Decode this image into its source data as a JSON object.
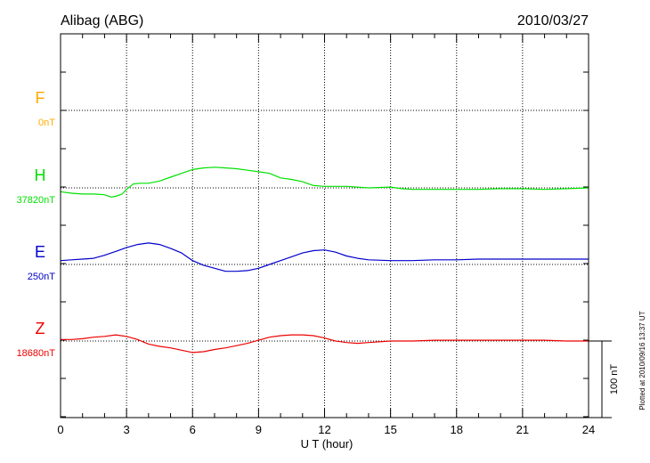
{
  "chart_data": {
    "type": "line",
    "title": "Alibag (ABG)",
    "date": "2010/03/27",
    "xlabel": "U T (hour)",
    "xlim": [
      0,
      24
    ],
    "xticks": [
      "0",
      "3",
      "6",
      "9",
      "12",
      "15",
      "18",
      "21",
      "24"
    ],
    "scale_label": "100 nT",
    "scale_nT": 100,
    "footer": "Plotted at 2010/09/16 13:37 UT",
    "series": [
      {
        "name": "F",
        "baseline": "0nT",
        "color": "#ffaa00",
        "x": [],
        "y": []
      },
      {
        "name": "H",
        "baseline": "37820nT",
        "color": "#00e000",
        "x": [
          0,
          0.5,
          1,
          1.5,
          2,
          2.3,
          2.5,
          2.8,
          3,
          3.3,
          3.6,
          4,
          4.5,
          5,
          5.5,
          6,
          6.5,
          7,
          7.5,
          8,
          8.5,
          9,
          9.5,
          10,
          10.5,
          11,
          11.5,
          12,
          12.5,
          13,
          14,
          15,
          15.5,
          16,
          17,
          18,
          19,
          20,
          21,
          22,
          23,
          24
        ],
        "y": [
          -5,
          -7,
          -8,
          -8,
          -9,
          -12,
          -11,
          -8,
          -2,
          5,
          6,
          6,
          9,
          14,
          19,
          24,
          26,
          27,
          26,
          25,
          23,
          21,
          19,
          13,
          11,
          8,
          3,
          2,
          2,
          2,
          0,
          1,
          -1,
          -2,
          -2,
          -2,
          -2,
          -1,
          -1,
          -2,
          -1,
          0
        ]
      },
      {
        "name": "E",
        "baseline": "250nT",
        "color": "#0000cc",
        "x": [
          0,
          0.5,
          1,
          1.5,
          2,
          2.5,
          3,
          3.5,
          4,
          4.5,
          5,
          5.5,
          6,
          6.5,
          7,
          7.5,
          8,
          8.5,
          9,
          9.5,
          10,
          10.5,
          11,
          11.5,
          12,
          12.5,
          13,
          13.5,
          14,
          15,
          16,
          17,
          18,
          19,
          20,
          21,
          22,
          23,
          24
        ],
        "y": [
          5,
          6,
          7,
          8,
          12,
          17,
          22,
          26,
          28,
          26,
          21,
          15,
          5,
          -1,
          -5,
          -9,
          -9,
          -8,
          -5,
          0,
          5,
          10,
          15,
          18,
          19,
          16,
          11,
          8,
          6,
          5,
          5,
          6,
          6,
          7,
          7,
          7,
          7,
          7,
          7
        ]
      },
      {
        "name": "Z",
        "baseline": "18680nT",
        "color": "#ee0000",
        "x": [
          0,
          0.5,
          1,
          1.5,
          2,
          2.5,
          3,
          3.5,
          4,
          4.5,
          5,
          5.5,
          6,
          6.5,
          7,
          7.5,
          8,
          8.5,
          9,
          9.5,
          10,
          10.5,
          11,
          11.5,
          12,
          12.5,
          13,
          13.5,
          14,
          15,
          16,
          17,
          18,
          19,
          20,
          21,
          22,
          23,
          24
        ],
        "y": [
          2,
          2,
          3,
          5,
          6,
          8,
          6,
          2,
          -4,
          -7,
          -9,
          -12,
          -15,
          -14,
          -11,
          -9,
          -6,
          -3,
          1,
          5,
          7,
          8,
          8,
          7,
          4,
          0,
          -2,
          -3,
          -2,
          0,
          0,
          1,
          1,
          1,
          1,
          1,
          1,
          0,
          0
        ]
      }
    ]
  }
}
